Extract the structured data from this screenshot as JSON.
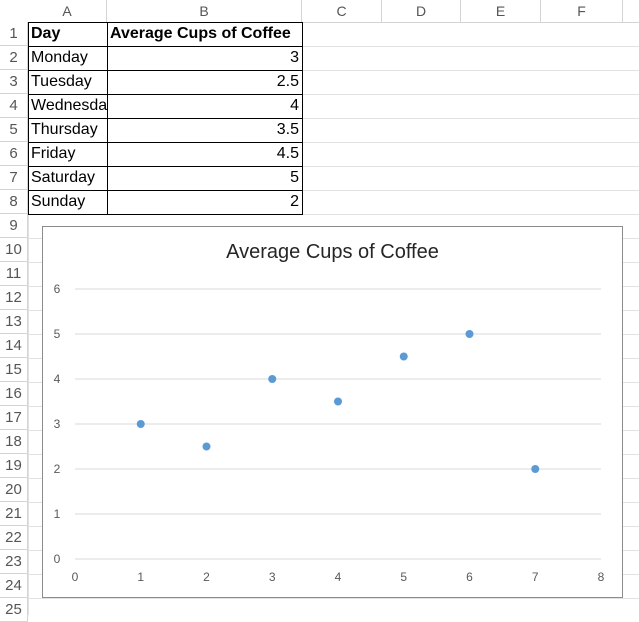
{
  "columns": [
    "A",
    "B",
    "C",
    "D",
    "E",
    "F"
  ],
  "rows": [
    "1",
    "2",
    "3",
    "4",
    "5",
    "6",
    "7",
    "8",
    "9",
    "10",
    "11",
    "12",
    "13",
    "14",
    "15",
    "16",
    "17",
    "18",
    "19",
    "20",
    "21",
    "22",
    "23",
    "24",
    "25"
  ],
  "table": {
    "header": {
      "day": "Day",
      "avg": "Average Cups of Coffee"
    },
    "rows": [
      {
        "day": "Monday",
        "avg": "3"
      },
      {
        "day": "Tuesday",
        "avg": "2.5"
      },
      {
        "day": "Wednesda",
        "avg": "4"
      },
      {
        "day": "Thursday",
        "avg": "3.5"
      },
      {
        "day": "Friday",
        "avg": "4.5"
      },
      {
        "day": "Saturday",
        "avg": "5"
      },
      {
        "day": "Sunday",
        "avg": "2"
      }
    ]
  },
  "chart_data": {
    "type": "scatter",
    "title": "Average Cups of Coffee",
    "x": [
      1,
      2,
      3,
      4,
      5,
      6,
      7
    ],
    "y": [
      3,
      2.5,
      4,
      3.5,
      4.5,
      5,
      2
    ],
    "xlim": [
      0,
      8
    ],
    "ylim": [
      0,
      6
    ],
    "xticks": [
      "0",
      "1",
      "2",
      "3",
      "4",
      "5",
      "6",
      "7",
      "8"
    ],
    "yticks": [
      "0",
      "1",
      "2",
      "3",
      "4",
      "5",
      "6"
    ],
    "grid": "horizontal",
    "marker_color": "#5b9bd5"
  }
}
